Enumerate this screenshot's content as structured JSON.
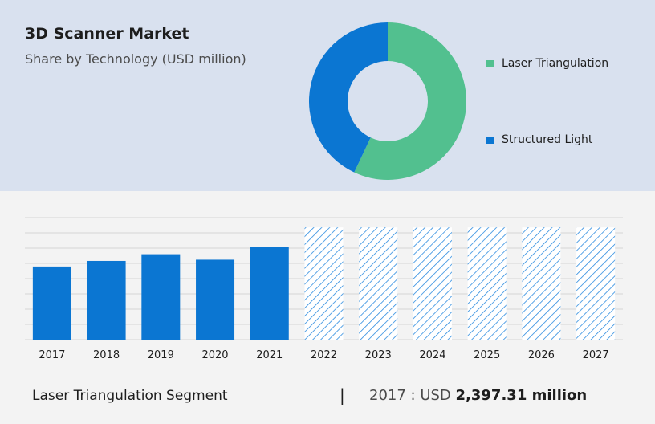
{
  "chart_data": [
    {
      "type": "pie",
      "title": "3D Scanner Market",
      "subtitle": "Share by Technology (USD million)",
      "series": [
        {
          "name": "Laser Triangulation",
          "value": 57,
          "color": "#52c08f"
        },
        {
          "name": "Structured Light",
          "value": 43,
          "color": "#0b76d2"
        }
      ],
      "legend_position": "right"
    },
    {
      "type": "bar",
      "categories": [
        "2017",
        "2018",
        "2019",
        "2020",
        "2021",
        "2022",
        "2023",
        "2024",
        "2025",
        "2026",
        "2027"
      ],
      "values": [
        2397.31,
        2580,
        2800,
        2620,
        3030,
        null,
        null,
        null,
        null,
        null,
        null
      ],
      "forecast_categories": [
        "2022",
        "2023",
        "2024",
        "2025",
        "2026",
        "2027"
      ],
      "bar_color": "#0b76d2",
      "forecast_pattern": "diagonal-hatch",
      "ylim": [
        0,
        4000
      ],
      "grid": true
    }
  ],
  "footer": {
    "segment_label": "Laser Triangulation Segment",
    "divider": "|",
    "year_prefix": "2017 : USD",
    "value_text": "2,397.31 million"
  }
}
